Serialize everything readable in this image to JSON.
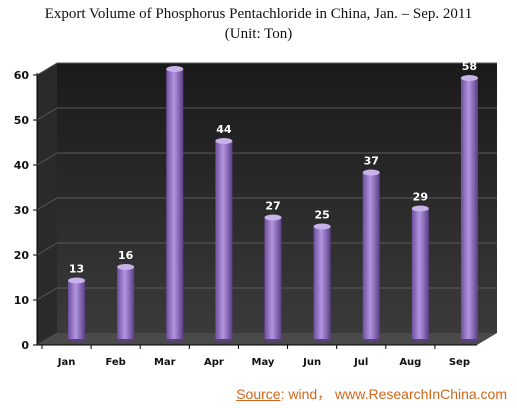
{
  "chart_data": {
    "type": "bar",
    "title": "Export Volume of Phosphorus Pentachloride in China, Jan. – Sep. 2011",
    "subtitle": "(Unit: Ton)",
    "categories": [
      "Jan",
      "Feb",
      "Mar",
      "Apr",
      "May",
      "Jun",
      "Jul",
      "Aug",
      "Sep"
    ],
    "values": [
      13,
      16,
      60,
      44,
      27,
      25,
      37,
      29,
      58
    ],
    "yticks": [
      "0",
      "10",
      "20",
      "30",
      "40",
      "50",
      "60"
    ],
    "ylim": [
      0,
      60
    ],
    "xlabel": "",
    "ylabel": "",
    "grid": true,
    "legend": "none",
    "bar_color": "#8f6cc4",
    "background_color": "#333333"
  },
  "source": {
    "label": "Source",
    "text": ":  wind， www.ResearchInChina.com"
  }
}
